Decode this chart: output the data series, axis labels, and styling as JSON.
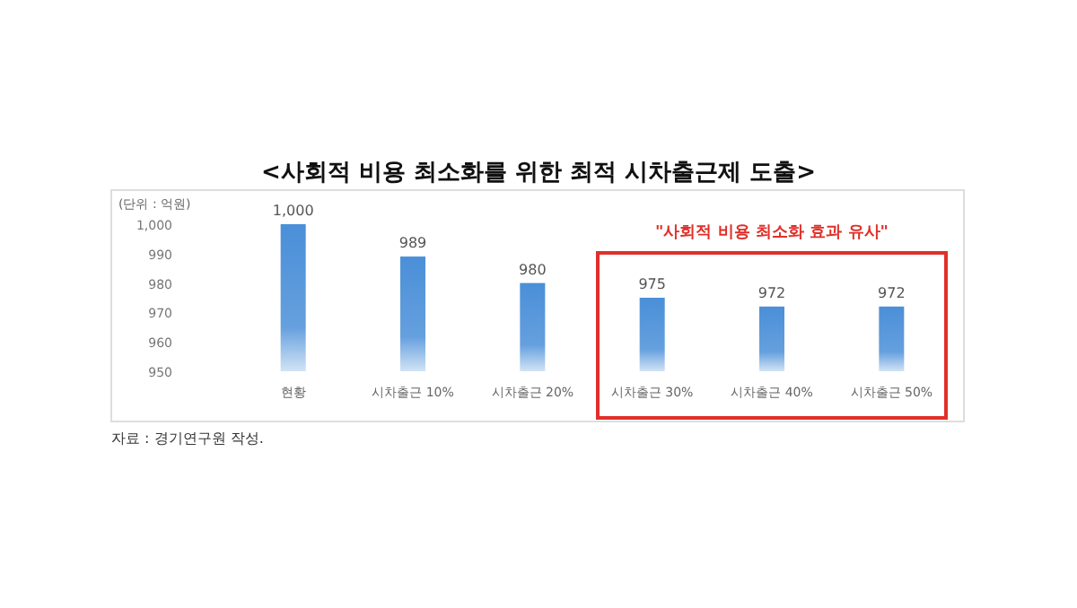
{
  "chart_data": {
    "type": "bar",
    "title": "<사회적 비용 최소화를 위한 최적 시차출근제 도출>",
    "ylabel": "(단위 : 억원)",
    "categories": [
      "현황",
      "시차출근 10%",
      "시차출근 20%",
      "시차출근 30%",
      "시차출근 40%",
      "시차출근 50%"
    ],
    "values": [
      1000,
      989,
      980,
      975,
      972,
      972
    ],
    "color": "#4a8fd8",
    "value_labels": [
      "1,000",
      "989",
      "980",
      "975",
      "972",
      "972"
    ],
    "ylim": [
      950,
      1000
    ],
    "yticks": [
      950,
      960,
      970,
      980,
      990,
      {
        "value": 1000,
        "label": "1,000"
      }
    ],
    "grid": false,
    "annotations": [
      "\"사회적 비용 최소화 효과 유사\"",
      "자료 : 경기연구원 작성."
    ]
  }
}
